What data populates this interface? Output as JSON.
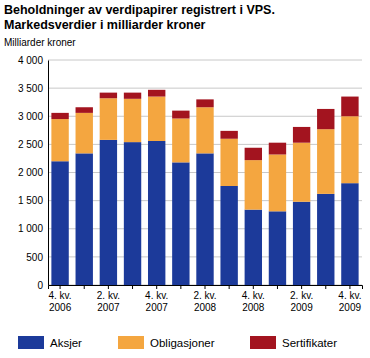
{
  "chart_data": {
    "type": "bar",
    "stacked": true,
    "grid": true,
    "legend": "bottom",
    "title": "Beholdninger av verdipapirer registrert i VPS.",
    "subtitle": "Markedsverdier i milliarder kroner",
    "y_label": "Milliarder kroner",
    "categories": [
      "4. kv. 2006",
      null,
      "2. kv. 2007",
      null,
      "4. kv. 2007",
      null,
      "2. kv. 2008",
      null,
      "4. kv. 2008",
      null,
      "2. kv. 2009",
      null,
      "4. kv. 2009"
    ],
    "series": [
      {
        "name": "Aksjer",
        "color": "#1c3a9a",
        "values": [
          2200,
          2340,
          2580,
          2540,
          2560,
          2180,
          2340,
          1760,
          1340,
          1310,
          1480,
          1620,
          1810
        ]
      },
      {
        "name": "Obligasjoner",
        "color": "#f4a640",
        "values": [
          750,
          720,
          740,
          770,
          790,
          780,
          820,
          840,
          880,
          1010,
          1050,
          1150,
          1190
        ]
      },
      {
        "name": "Sertifikater",
        "color": "#a3141f",
        "values": [
          110,
          100,
          100,
          110,
          120,
          140,
          140,
          140,
          220,
          210,
          280,
          360,
          350
        ]
      }
    ],
    "ylim": [
      0,
      4000
    ],
    "yticks": [
      0,
      500,
      {
        "value": 1000,
        "label": "1 000"
      },
      {
        "value": 1500,
        "label": "1 500"
      },
      {
        "value": 2000,
        "label": "2 000"
      },
      {
        "value": 2500,
        "label": "2 500"
      },
      {
        "value": 3000,
        "label": "3 000"
      },
      {
        "value": 3500,
        "label": "3 500"
      },
      {
        "value": 4000,
        "label": "4 000"
      }
    ]
  }
}
